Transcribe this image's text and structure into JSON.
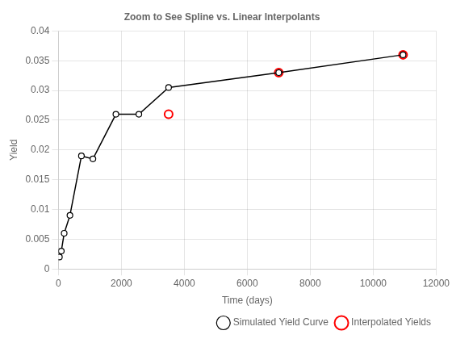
{
  "chart_data": {
    "type": "line",
    "title": "Zoom to See Spline vs. Linear Interpolants",
    "xlabel": "Time (days)",
    "ylabel": "Yield",
    "xlim": [
      0,
      12000
    ],
    "ylim": [
      0,
      0.04
    ],
    "xticks": [
      0,
      2000,
      4000,
      6000,
      8000,
      10000,
      12000
    ],
    "yticks": [
      0,
      0.005,
      0.01,
      0.015,
      0.02,
      0.025,
      0.03,
      0.035,
      0.04
    ],
    "grid": true,
    "legend": "lower right",
    "series": [
      {
        "name": "Simulated Yield Curve",
        "type": "line",
        "color": "#000000",
        "marker": "circle",
        "line_style": "solid",
        "x": [
          30,
          91,
          182,
          365,
          730,
          1095,
          1825,
          2555,
          3500,
          7000,
          10950
        ],
        "values": [
          0.002,
          0.003,
          0.006,
          0.009,
          0.019,
          0.0185,
          0.026,
          0.026,
          0.0305,
          0.033,
          0.036
        ]
      },
      {
        "name": "Interpolated Yields",
        "type": "scatter",
        "color": "#ff0000",
        "marker": "circle",
        "line_style": "none",
        "x": [
          3500,
          7000,
          10950
        ],
        "values": [
          0.026,
          0.033,
          0.036
        ]
      }
    ]
  }
}
